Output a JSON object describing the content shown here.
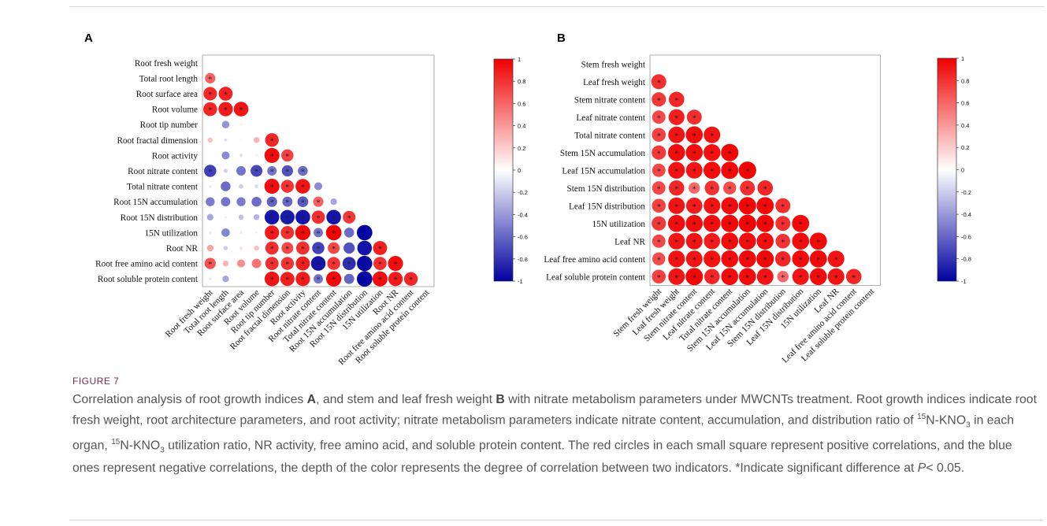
{
  "figure_label": "FIGURE 7",
  "caption": {
    "t1": "Correlation analysis of root growth indices ",
    "t2": "A",
    "t3": ", and stem and leaf fresh weight ",
    "t4": "B",
    "t5": " with nitrate metabolism parameters under MWCNTs treatment. Root growth indices indicate root fresh weight, root architecture parameters, and root activity; nitrate metabolism parameters indicate nitrate content, accumulation, and distribution ratio of ",
    "sup1": "15",
    "t6": "N-KNO",
    "sub1": "3",
    "t7": " in each organ, ",
    "sup2": "15",
    "t8": "N-KNO",
    "sub2": "3",
    "t9": " utilization ratio, NR activity, free amino acid, and soluble protein content. The red circles in each small square represent positive correlations, and the blue ones represent negative correlations, the depth of the color represents the degree of correlation between two indicators. *Indicate significant difference at ",
    "t10": "P",
    "t11": "< 0.05."
  },
  "colors": {
    "positive": "#f00000",
    "negative": "#0000a0",
    "neutral": "#ffffff"
  },
  "chart_data": [
    {
      "type": "heatmap",
      "panel_label": "A",
      "variables": [
        "Root fresh weight",
        "Total root length",
        "Root surface area",
        "Root volume",
        "Root tip number",
        "Root fractal dimension",
        "Root activity",
        "Root nitrate content",
        "Total nitrate content",
        "Root 15N accumulation",
        "Root 15N distribution",
        "15N utilization",
        "Root NR",
        "Root free amino acid content",
        "Root soluble protein content"
      ],
      "lower_triangle": [
        [],
        [
          0.62
        ],
        [
          0.84,
          0.87
        ],
        [
          0.86,
          0.9,
          0.92
        ],
        [
          0.0,
          -0.42,
          -0.05,
          0.0
        ],
        [
          0.25,
          -0.12,
          0.03,
          0.3,
          0.85
        ],
        [
          0.02,
          -0.45,
          -0.12,
          -0.05,
          0.95,
          0.75
        ],
        [
          -0.75,
          -0.18,
          -0.55,
          -0.72,
          -0.55,
          -0.68,
          -0.58
        ],
        [
          -0.08,
          -0.58,
          -0.2,
          -0.15,
          0.95,
          0.8,
          0.92,
          -0.45
        ],
        [
          -0.52,
          -0.55,
          -0.52,
          -0.58,
          -0.62,
          -0.6,
          -0.65,
          0.62,
          -0.35
        ],
        [
          -0.35,
          0.08,
          -0.25,
          -0.3,
          -0.92,
          -0.9,
          -0.92,
          0.82,
          -0.92,
          0.78
        ],
        [
          0.1,
          -0.48,
          -0.08,
          -0.05,
          0.9,
          0.82,
          0.96,
          -0.55,
          0.98,
          -0.58,
          -0.98
        ],
        [
          0.35,
          -0.2,
          0.12,
          0.25,
          0.82,
          0.72,
          0.82,
          -0.75,
          0.72,
          -0.68,
          -0.92,
          0.88
        ],
        [
          0.68,
          0.3,
          0.45,
          0.55,
          0.82,
          0.8,
          0.88,
          -0.92,
          0.8,
          -0.82,
          -0.97,
          0.82,
          0.95
        ],
        [
          0.1,
          -0.35,
          0.03,
          0.02,
          0.92,
          0.88,
          0.9,
          -0.55,
          0.96,
          -0.6,
          -0.98,
          0.95,
          0.9,
          0.85
        ]
      ],
      "significant": [
        [],
        [
          true
        ],
        [
          true,
          true
        ],
        [
          true,
          true,
          true
        ],
        [
          false,
          false,
          false,
          false
        ],
        [
          false,
          false,
          false,
          false,
          true
        ],
        [
          false,
          false,
          false,
          false,
          true,
          true
        ],
        [
          true,
          false,
          false,
          true,
          true,
          true,
          true
        ],
        [
          false,
          false,
          false,
          false,
          true,
          true,
          true,
          false
        ],
        [
          false,
          false,
          false,
          false,
          true,
          true,
          true,
          true,
          false
        ],
        [
          false,
          false,
          false,
          false,
          true,
          true,
          true,
          true,
          true,
          true
        ],
        [
          false,
          false,
          false,
          false,
          true,
          true,
          true,
          true,
          true,
          false,
          false
        ],
        [
          false,
          false,
          false,
          false,
          true,
          true,
          true,
          true,
          true,
          false,
          false,
          true
        ],
        [
          true,
          false,
          false,
          false,
          true,
          true,
          true,
          true,
          true,
          true,
          false,
          true,
          true
        ],
        [
          false,
          false,
          false,
          false,
          true,
          true,
          true,
          true,
          true,
          false,
          false,
          true,
          true,
          true
        ]
      ],
      "colorbar": {
        "range": [
          -1,
          1
        ],
        "ticks": [
          "1",
          "0.8",
          "0.6",
          "0.4",
          "0.2",
          "0",
          "-0.2",
          "-0.4",
          "-0.6",
          "-0.8",
          "-1"
        ]
      }
    },
    {
      "type": "heatmap",
      "panel_label": "B",
      "variables": [
        "Stem fresh weight",
        "Leaf fresh weight",
        "Stem nitrate content",
        "Leaf nitrate content",
        "Total nitrate content",
        "Stem 15N accumulation",
        "Leaf 15N accumulation",
        "Stem 15N distribution",
        "Leaf 15N distribution",
        "15N utilization",
        "Leaf NR",
        "Leaf free amino acid content",
        "Leaf soluble protein content"
      ],
      "lower_triangle": [
        [],
        [
          0.82
        ],
        [
          0.78,
          0.85
        ],
        [
          0.72,
          0.88,
          0.82
        ],
        [
          0.75,
          0.92,
          0.95,
          0.92
        ],
        [
          0.78,
          0.95,
          0.95,
          0.94,
          0.97
        ],
        [
          0.72,
          0.93,
          0.92,
          0.95,
          0.96,
          0.98
        ],
        [
          0.72,
          0.85,
          0.6,
          0.8,
          0.7,
          0.82,
          0.85
        ],
        [
          0.75,
          0.92,
          0.9,
          0.92,
          0.95,
          0.97,
          0.96,
          0.82
        ],
        [
          0.78,
          0.95,
          0.95,
          0.95,
          0.97,
          0.98,
          0.97,
          0.82,
          0.96
        ],
        [
          0.72,
          0.92,
          0.92,
          0.9,
          0.95,
          0.95,
          0.94,
          0.8,
          0.95,
          0.96
        ],
        [
          0.7,
          0.93,
          0.92,
          0.93,
          0.95,
          0.96,
          0.97,
          0.85,
          0.95,
          0.96,
          0.92
        ],
        [
          0.75,
          0.92,
          0.97,
          0.85,
          0.95,
          0.95,
          0.92,
          0.6,
          0.92,
          0.95,
          0.92,
          0.85
        ]
      ],
      "significant": [
        [],
        [
          true
        ],
        [
          true,
          true
        ],
        [
          true,
          true,
          true
        ],
        [
          true,
          true,
          true,
          true
        ],
        [
          true,
          true,
          true,
          true,
          true
        ],
        [
          true,
          true,
          true,
          true,
          true,
          true
        ],
        [
          true,
          true,
          true,
          true,
          true,
          true,
          true
        ],
        [
          true,
          true,
          true,
          true,
          true,
          true,
          true,
          true
        ],
        [
          true,
          true,
          true,
          true,
          true,
          true,
          true,
          true,
          true
        ],
        [
          true,
          true,
          true,
          true,
          true,
          true,
          true,
          true,
          true,
          true
        ],
        [
          true,
          true,
          true,
          true,
          true,
          true,
          true,
          true,
          true,
          true,
          true
        ],
        [
          true,
          true,
          true,
          true,
          true,
          true,
          true,
          true,
          true,
          true,
          true,
          true
        ]
      ],
      "colorbar": {
        "range": [
          -1,
          1
        ],
        "ticks": [
          "1",
          "0.8",
          "0.6",
          "0.4",
          "0.2",
          "0",
          "-0.2",
          "-0.4",
          "-0.6",
          "-0.8",
          "-1"
        ]
      }
    }
  ]
}
